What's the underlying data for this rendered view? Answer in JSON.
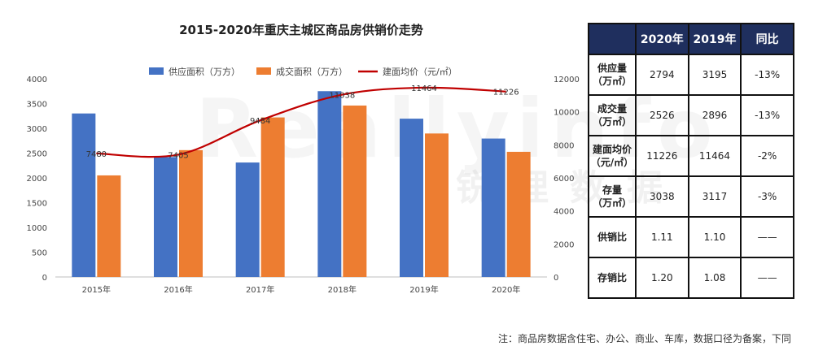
{
  "watermark": {
    "logo": "Reallyinfo",
    "cn": "锐理数据"
  },
  "chart_data": {
    "type": "bar+line",
    "title": "2015-2020年重庆主城区商品房供销价走势",
    "categories": [
      "2015年",
      "2016年",
      "2017年",
      "2018年",
      "2019年",
      "2020年"
    ],
    "series": [
      {
        "name": "供应面积（万方）",
        "kind": "bar",
        "axis": "left",
        "color": "#4472C4",
        "values": [
          3300,
          2420,
          2310,
          3750,
          3195,
          2794
        ]
      },
      {
        "name": "成交面积（万方）",
        "kind": "bar",
        "axis": "left",
        "color": "#ED7D31",
        "values": [
          2050,
          2560,
          3220,
          3460,
          2896,
          2526
        ]
      },
      {
        "name": "建面均价（元/㎡）",
        "kind": "line",
        "axis": "right",
        "color": "#C00000",
        "values": [
          7480,
          7405,
          9484,
          11038,
          11464,
          11226
        ],
        "labels": [
          "7480",
          "7405",
          "9484",
          "11038",
          "11464",
          "11226"
        ]
      }
    ],
    "y_left": {
      "min": 0,
      "max": 4000,
      "ticks": [
        "0",
        "500",
        "1000",
        "1500",
        "2000",
        "2500",
        "3000",
        "3500",
        "4000"
      ]
    },
    "y_right": {
      "min": 0,
      "max": 12000,
      "ticks": [
        "0",
        "2000",
        "4000",
        "6000",
        "8000",
        "10000",
        "12000"
      ]
    },
    "legend_position": "top"
  },
  "table": {
    "headers": [
      "",
      "2020年",
      "2019年",
      "同比"
    ],
    "rows": [
      {
        "label": [
          "供应量",
          "（万㎡）"
        ],
        "cells": [
          "2794",
          "3195",
          "-13%"
        ]
      },
      {
        "label": [
          "成交量",
          "（万㎡）"
        ],
        "cells": [
          "2526",
          "2896",
          "-13%"
        ]
      },
      {
        "label": [
          "建面均价",
          "（元/㎡）"
        ],
        "cells": [
          "11226",
          "11464",
          "-2%"
        ]
      },
      {
        "label": [
          "存量",
          "（万㎡）"
        ],
        "cells": [
          "3038",
          "3117",
          "-3%"
        ]
      },
      {
        "label": [
          "供销比"
        ],
        "cells": [
          "1.11",
          "1.10",
          "——"
        ]
      },
      {
        "label": [
          "存销比"
        ],
        "cells": [
          "1.20",
          "1.08",
          "——"
        ]
      }
    ]
  },
  "footnote": "注：商品房数据含住宅、办公、商业、车库，数据口径为备案，下同"
}
